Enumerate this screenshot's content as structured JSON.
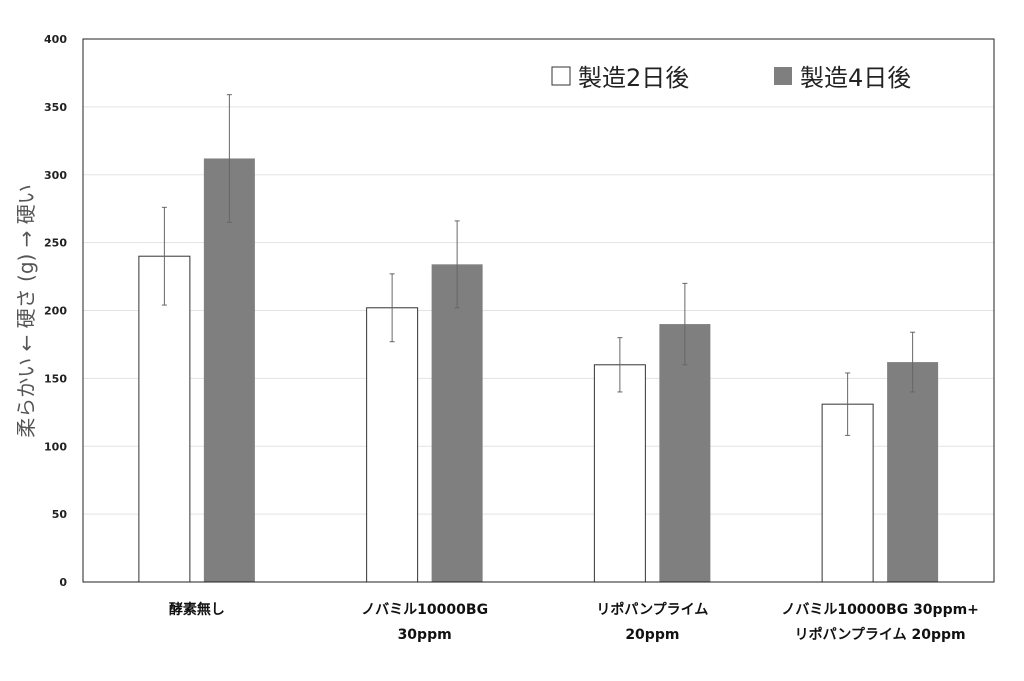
{
  "chart_data": {
    "type": "bar",
    "categories": [
      [
        "酵素無し"
      ],
      [
        "ノバミル10000BG",
        "30ppm"
      ],
      [
        "リポパンプライム",
        "20ppm"
      ],
      [
        "ノバミル10000BG 30ppm+",
        "リポパンプライム 20ppm"
      ]
    ],
    "series": [
      {
        "name": "製造2日後",
        "values": [
          240,
          202,
          160,
          131
        ],
        "errors": [
          36,
          25,
          20,
          23
        ],
        "color": "#ffffff"
      },
      {
        "name": "製造4日後",
        "values": [
          312,
          234,
          190,
          162
        ],
        "errors": [
          47,
          32,
          30,
          22
        ],
        "color": "#7f7f7f"
      }
    ],
    "ylabel": "柔らかい  ←  硬さ (g)  →  硬い",
    "xlabel": "",
    "ylim": [
      0,
      400
    ],
    "yticks": [
      0,
      50,
      100,
      150,
      200,
      250,
      300,
      350,
      400
    ],
    "grid": true,
    "legend_position": "top-right"
  }
}
